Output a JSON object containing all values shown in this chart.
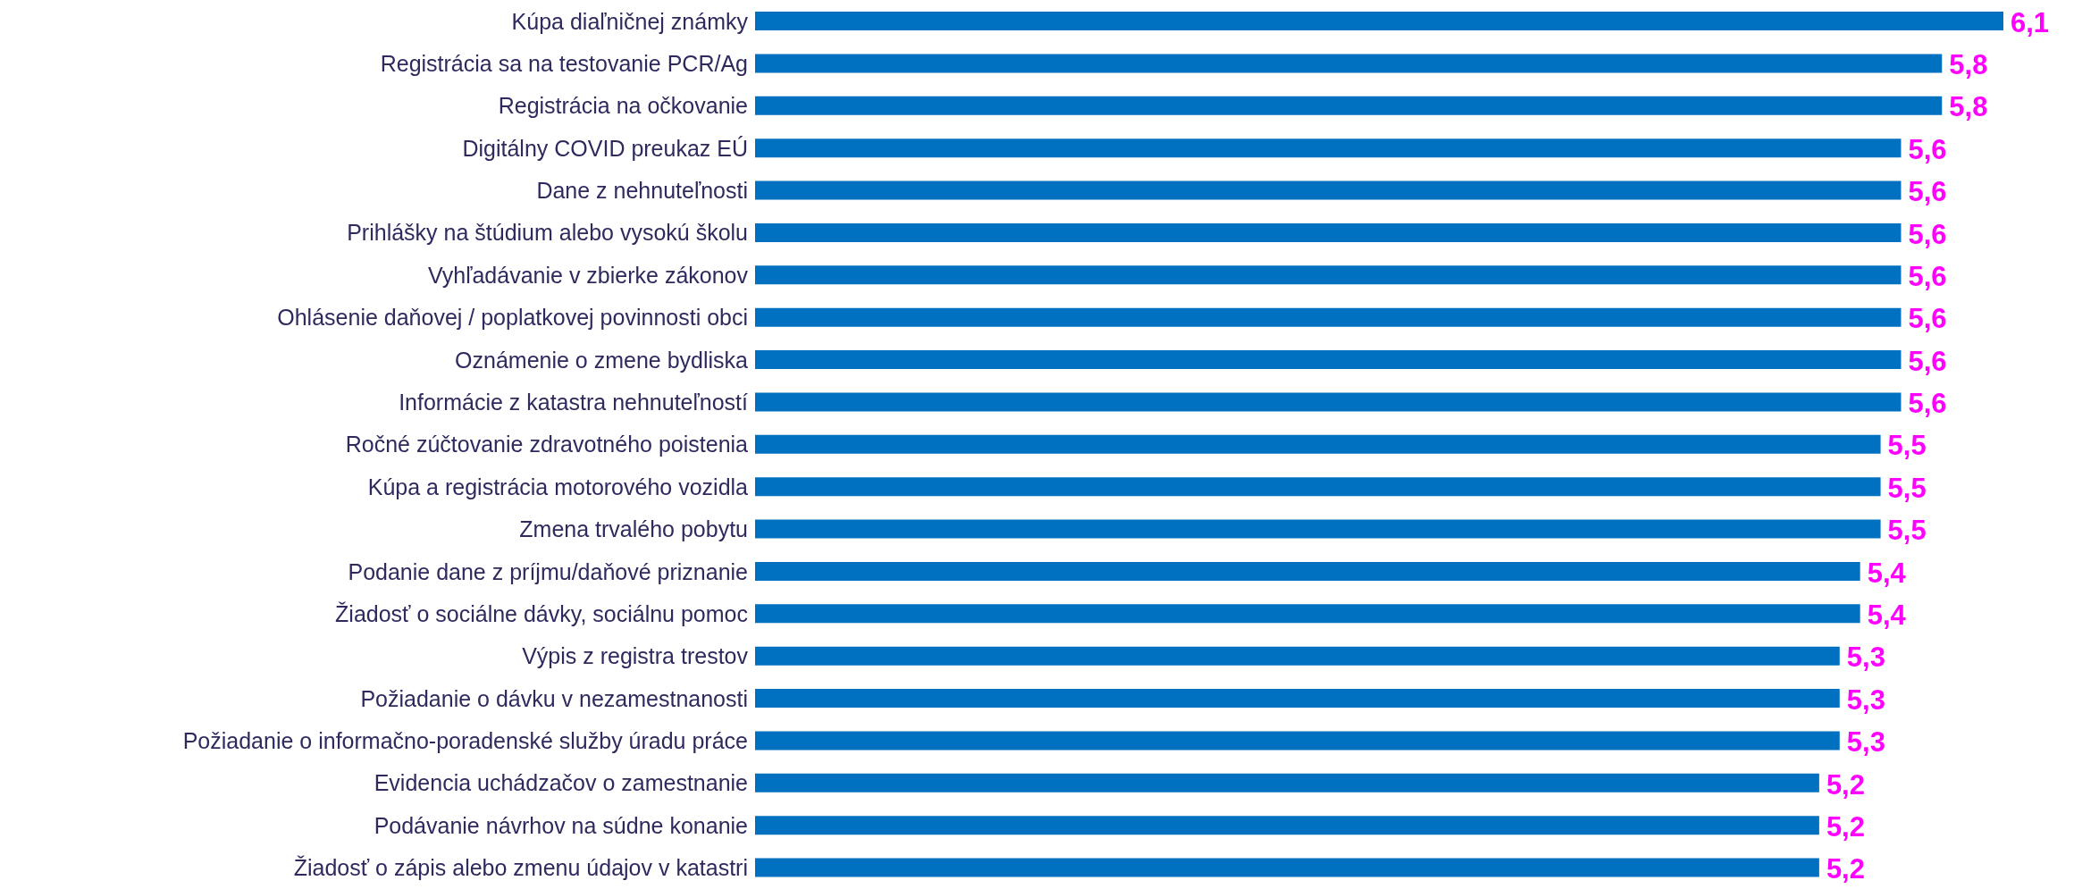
{
  "chart_data": {
    "type": "bar",
    "orientation": "horizontal",
    "color": "#0070c0",
    "categories": [
      "Kúpa diaľničnej známky",
      "Registrácia sa na testovanie PCR/Ag",
      "Registrácia na očkovanie",
      "Digitálny COVID preukaz EÚ",
      "Dane z nehnuteľnosti",
      "Prihlášky na štúdium alebo vysokú školu",
      "Vyhľadávanie v zbierke zákonov",
      "Ohlásenie daňovej / poplatkovej povinnosti obci",
      "Oznámenie o zmene bydliska",
      "Informácie z katastra nehnuteľností",
      "Ročné zúčtovanie zdravotného poistenia",
      "Kúpa a registrácia motorového vozidla",
      "Zmena trvalého pobytu",
      "Podanie dane z príjmu/daňové priznanie",
      "Žiadosť o sociálne dávky, sociálnu pomoc",
      "Výpis z registra trestov",
      "Požiadanie o dávku v nezamestnanosti",
      "Požiadanie o informačno-poradenské služby úradu práce",
      "Evidencia uchádzačov o zamestnanie",
      "Podávanie návrhov na súdne konanie",
      "Žiadosť o zápis alebo zmenu údajov v katastri"
    ],
    "values": [
      6.1,
      5.8,
      5.8,
      5.6,
      5.6,
      5.6,
      5.6,
      5.6,
      5.6,
      5.6,
      5.5,
      5.5,
      5.5,
      5.4,
      5.4,
      5.3,
      5.3,
      5.3,
      5.2,
      5.2,
      5.2
    ],
    "value_labels": [
      "6,1",
      "5,8",
      "5,8",
      "5,6",
      "5,6",
      "5,6",
      "5,6",
      "5,6",
      "5,6",
      "5,6",
      "5,5",
      "5,5",
      "5,5",
      "5,4",
      "5,4",
      "5,3",
      "5,3",
      "5,3",
      "5,2",
      "5,2",
      "5,2"
    ]
  }
}
